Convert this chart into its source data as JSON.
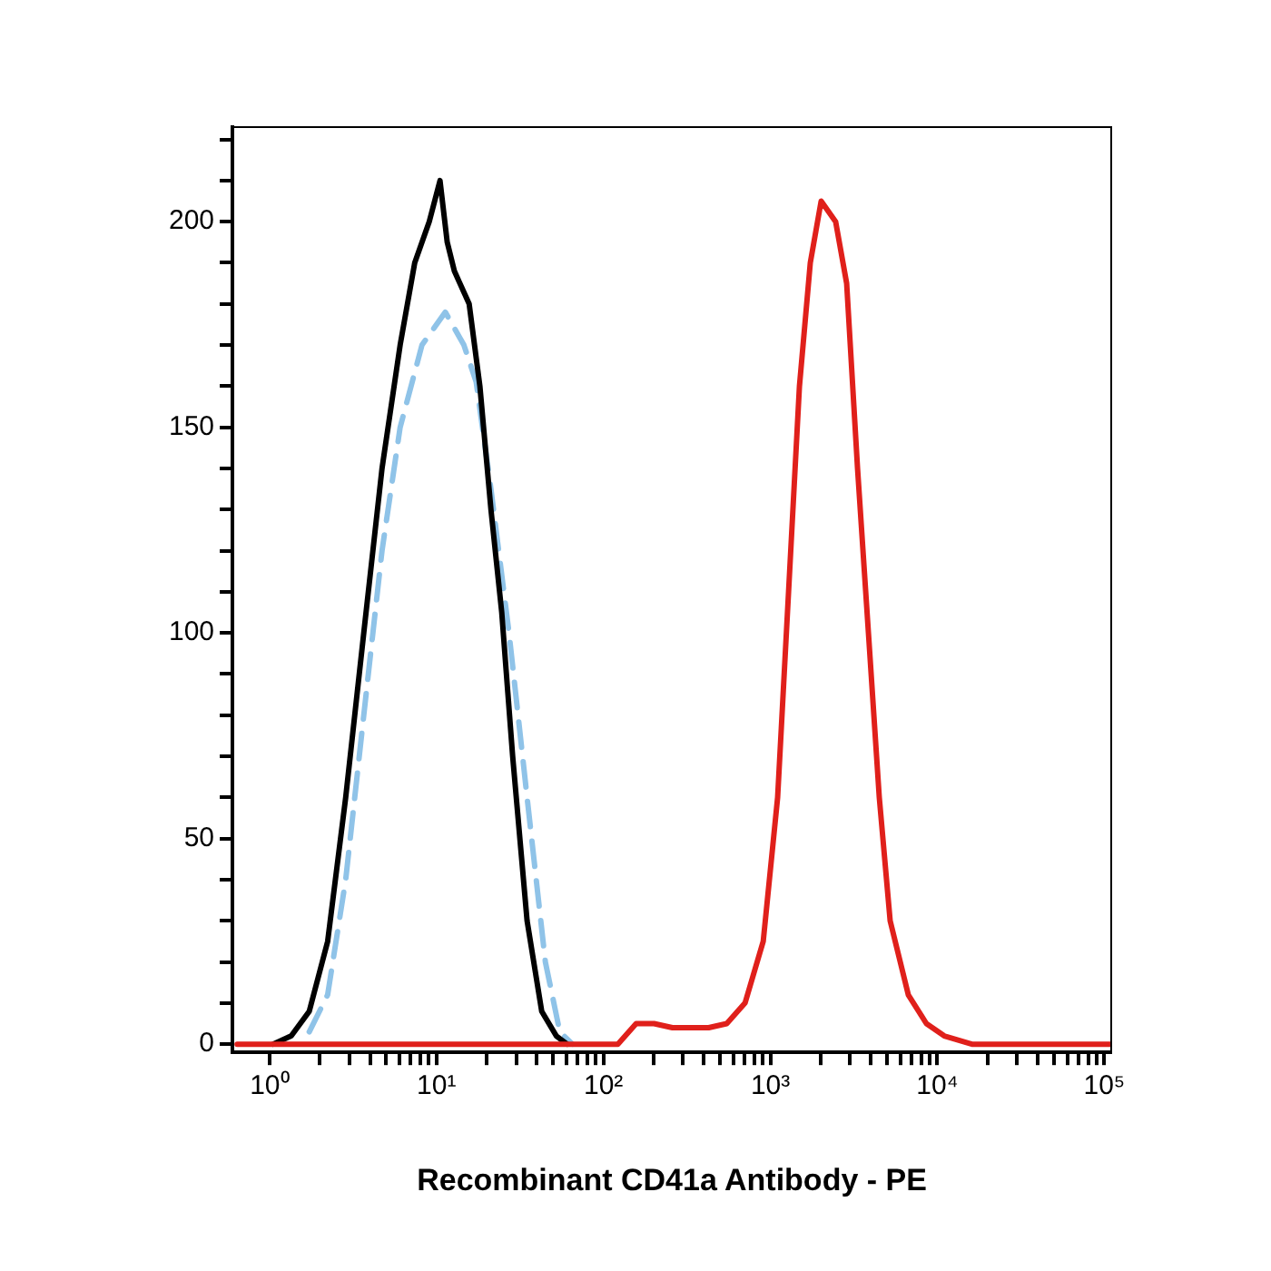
{
  "chart_data": {
    "type": "line",
    "xlabel": "Recombinant CD41a Antibody - PE",
    "log": "x",
    "grid": false,
    "legend": false,
    "marker": "none",
    "xlim": [
      0.64,
      110000
    ],
    "ylim": [
      -2,
      223
    ],
    "xticks": [
      {
        "value": 1,
        "label": "10⁰"
      },
      {
        "value": 2,
        "label": null
      },
      {
        "value": 3,
        "label": null
      },
      {
        "value": 4,
        "label": null
      },
      {
        "value": 5,
        "label": null
      },
      {
        "value": 6,
        "label": null
      },
      {
        "value": 7,
        "label": null
      },
      {
        "value": 8,
        "label": null
      },
      {
        "value": 9,
        "label": null
      },
      {
        "value": 10,
        "label": "10¹"
      },
      {
        "value": 20,
        "label": null
      },
      {
        "value": 30,
        "label": null
      },
      {
        "value": 40,
        "label": null
      },
      {
        "value": 50,
        "label": null
      },
      {
        "value": 60,
        "label": null
      },
      {
        "value": 70,
        "label": null
      },
      {
        "value": 80,
        "label": null
      },
      {
        "value": 90,
        "label": null
      },
      {
        "value": 100,
        "label": "10²"
      },
      {
        "value": 200,
        "label": null
      },
      {
        "value": 300,
        "label": null
      },
      {
        "value": 400,
        "label": null
      },
      {
        "value": 500,
        "label": null
      },
      {
        "value": 600,
        "label": null
      },
      {
        "value": 700,
        "label": null
      },
      {
        "value": 800,
        "label": null
      },
      {
        "value": 900,
        "label": null
      },
      {
        "value": 1000,
        "label": "10³"
      },
      {
        "value": 2000,
        "label": null
      },
      {
        "value": 3000,
        "label": null
      },
      {
        "value": 4000,
        "label": null
      },
      {
        "value": 5000,
        "label": null
      },
      {
        "value": 6000,
        "label": null
      },
      {
        "value": 7000,
        "label": null
      },
      {
        "value": 8000,
        "label": null
      },
      {
        "value": 9000,
        "label": null
      },
      {
        "value": 10000,
        "label": "10⁴"
      },
      {
        "value": 20000,
        "label": null
      },
      {
        "value": 30000,
        "label": null
      },
      {
        "value": 40000,
        "label": null
      },
      {
        "value": 50000,
        "label": null
      },
      {
        "value": 60000,
        "label": null
      },
      {
        "value": 70000,
        "label": null
      },
      {
        "value": 80000,
        "label": null
      },
      {
        "value": 90000,
        "label": null
      },
      {
        "value": 100000,
        "label": "10⁵"
      }
    ],
    "yticks": [
      0,
      {
        "value": 10,
        "label": null
      },
      {
        "value": 20,
        "label": null
      },
      {
        "value": 30,
        "label": null
      },
      {
        "value": 40,
        "label": null
      },
      50,
      {
        "value": 60,
        "label": null
      },
      {
        "value": 70,
        "label": null
      },
      {
        "value": 80,
        "label": null
      },
      {
        "value": 90,
        "label": null
      },
      100,
      {
        "value": 110,
        "label": null
      },
      {
        "value": 120,
        "label": null
      },
      {
        "value": 130,
        "label": null
      },
      {
        "value": 140,
        "label": null
      },
      150,
      {
        "value": 160,
        "label": null
      },
      {
        "value": 170,
        "label": null
      },
      {
        "value": 180,
        "label": null
      },
      {
        "value": 190,
        "label": null
      },
      200,
      {
        "value": 210,
        "label": null
      },
      {
        "value": 220,
        "label": null
      }
    ],
    "series": [
      {
        "color": "#e0201b",
        "x": [
          0.64,
          122,
          157,
          201,
          259,
          427,
          548,
          705,
          906,
          1105,
          1285,
          1493,
          1734,
          2014,
          2460,
          2863,
          3327,
          3866,
          4490,
          5216,
          6700,
          8600,
          11000,
          16100,
          110000
        ],
        "values": [
          0,
          0,
          5,
          5,
          4,
          4,
          5,
          10,
          25,
          60,
          110,
          160,
          190,
          205,
          200,
          185,
          140,
          100,
          60,
          30,
          12,
          5,
          2,
          0,
          0
        ]
      },
      {
        "color": "#000000",
        "x": [
          1.05,
          1.35,
          1.73,
          2.23,
          2.86,
          3.67,
          4.72,
          6.06,
          7.41,
          9.05,
          10.5,
          11.6,
          12.8,
          15.7,
          18.2,
          21.2,
          24.6,
          28.6,
          34.9,
          42.7,
          52.2,
          60.6
        ],
        "values": [
          0,
          2,
          8,
          25,
          60,
          100,
          140,
          170,
          190,
          200,
          210,
          195,
          188,
          180,
          160,
          130,
          105,
          70,
          30,
          8,
          2,
          0
        ]
      },
      {
        "color": "#8fc3e8",
        "line_style": "dashed",
        "x": [
          1.73,
          2.23,
          2.86,
          3.67,
          4.72,
          6.06,
          8.19,
          11.3,
          14.6,
          17.3,
          21.2,
          27.2,
          34.9,
          44.9,
          54.8,
          65.3
        ],
        "values": [
          3,
          12,
          40,
          80,
          120,
          150,
          170,
          178,
          170,
          161,
          135,
          100,
          60,
          20,
          3,
          0
        ]
      }
    ]
  }
}
